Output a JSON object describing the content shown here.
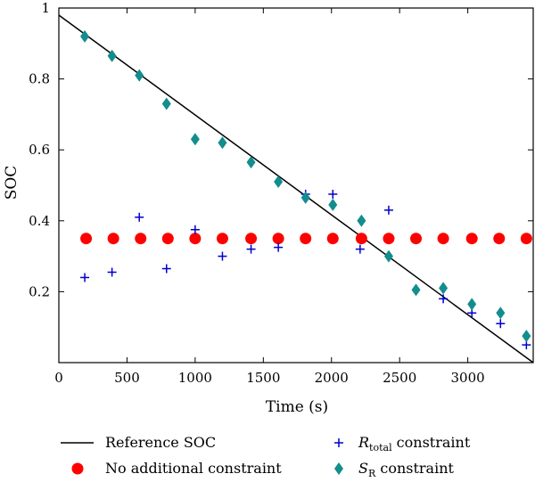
{
  "chart_data": {
    "type": "scatter",
    "xlabel": "Time (s)",
    "ylabel": "SOC",
    "xlim": [
      0,
      3480
    ],
    "ylim": [
      0,
      1
    ],
    "xticks": [
      0,
      500,
      1000,
      1500,
      2000,
      2500,
      3000
    ],
    "xtick_labels": [
      "0",
      "500",
      "1000",
      "1500",
      "2000",
      "2500",
      "3000"
    ],
    "yticks": [
      0.2,
      0.4,
      0.6,
      0.8,
      1.0
    ],
    "ytick_labels": [
      "0.2",
      "0.4",
      "0.6",
      "0.8",
      "1"
    ],
    "grid": false,
    "legend_placement": "bottom",
    "reference_line": {
      "name": "Reference SOC",
      "color": "#000000",
      "x": [
        0,
        3480
      ],
      "y": [
        0.98,
        0.0
      ]
    },
    "series": [
      {
        "name": "No additional constraint",
        "marker": "circle",
        "color": "#ff0000",
        "x": [
          200,
          400,
          600,
          800,
          1000,
          1200,
          1410,
          1610,
          1810,
          2010,
          2220,
          2420,
          2620,
          2820,
          3030,
          3230,
          3430
        ],
        "y": [
          0.35,
          0.35,
          0.35,
          0.35,
          0.35,
          0.35,
          0.35,
          0.35,
          0.35,
          0.35,
          0.35,
          0.35,
          0.35,
          0.35,
          0.35,
          0.35,
          0.35
        ]
      },
      {
        "name_main": "R",
        "name_sub": "total",
        "name_rest": " constraint",
        "marker": "plus",
        "color": "#0000cc",
        "x": [
          190,
          390,
          590,
          790,
          1000,
          1200,
          1410,
          1610,
          1810,
          2010,
          2210,
          2420,
          2820,
          3030,
          3240,
          3430
        ],
        "y": [
          0.24,
          0.255,
          0.41,
          0.265,
          0.375,
          0.3,
          0.32,
          0.325,
          0.475,
          0.475,
          0.32,
          0.43,
          0.18,
          0.14,
          0.11,
          0.05
        ]
      },
      {
        "name_main": "S",
        "name_sub": "R",
        "name_rest": " constraint",
        "marker": "diamond",
        "color": "#138d8d",
        "x": [
          190,
          390,
          590,
          790,
          1000,
          1200,
          1410,
          1610,
          1810,
          2010,
          2220,
          2420,
          2620,
          2820,
          3030,
          3240,
          3430
        ],
        "y": [
          0.92,
          0.865,
          0.81,
          0.73,
          0.63,
          0.62,
          0.565,
          0.51,
          0.465,
          0.445,
          0.4,
          0.3,
          0.205,
          0.21,
          0.165,
          0.14,
          0.075
        ]
      }
    ]
  }
}
